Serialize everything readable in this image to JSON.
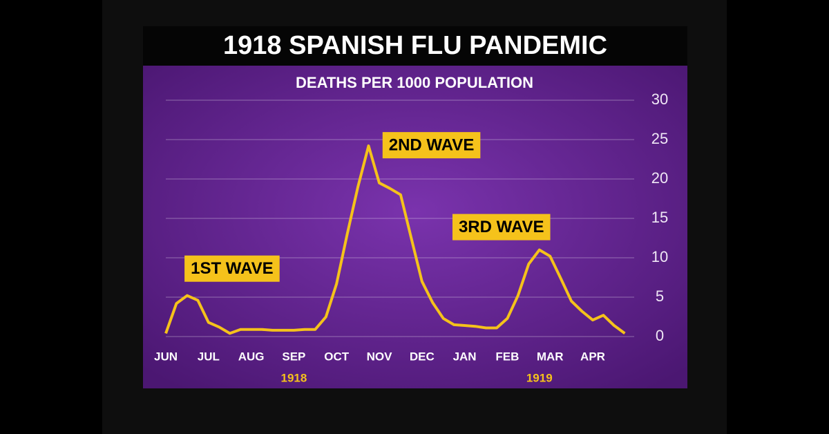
{
  "chart_data": {
    "type": "line",
    "title": "1918 SPANISH FLU PANDEMIC",
    "subtitle": "DEATHS PER 1000 POPULATION",
    "categories": [
      "JUN",
      null,
      null,
      null,
      "JUL",
      null,
      null,
      null,
      "AUG",
      null,
      null,
      null,
      "SEP",
      null,
      null,
      null,
      "OCT",
      null,
      null,
      null,
      "NOV",
      null,
      null,
      null,
      "DEC",
      null,
      null,
      null,
      "JAN",
      null,
      null,
      null,
      "FEB",
      null,
      null,
      null,
      "MAR",
      null,
      null,
      null,
      "APR",
      null,
      null,
      null
    ],
    "years": [
      null,
      null,
      null,
      null,
      null,
      null,
      null,
      null,
      null,
      null,
      null,
      null,
      "1918",
      null,
      null,
      null,
      null,
      null,
      null,
      null,
      null,
      null,
      null,
      null,
      null,
      null,
      null,
      null,
      null,
      null,
      null,
      null,
      null,
      null,
      null,
      "1919",
      null,
      null,
      null,
      null,
      null,
      null,
      null,
      null
    ],
    "series": [
      {
        "name": "Deaths per 1000",
        "color": "#f5c21b",
        "values": [
          0.4,
          4.2,
          5.2,
          4.6,
          1.8,
          1.2,
          0.4,
          0.9,
          0.9,
          0.9,
          0.8,
          0.8,
          0.8,
          0.9,
          0.9,
          2.5,
          6.7,
          13,
          19,
          24.2,
          19.5,
          18.8,
          18,
          12.5,
          7,
          4.3,
          2.3,
          1.5,
          1.4,
          1.3,
          1.1,
          1.1,
          2.3,
          5.2,
          9.2,
          11,
          10.2,
          7.4,
          4.5,
          3.2,
          2.1,
          2.7,
          1.4,
          0.4
        ]
      }
    ],
    "annotations": [
      {
        "text": "1ST WAVE",
        "at": 2
      },
      {
        "text": "2ND WAVE",
        "at": 19
      },
      {
        "text": "3RD WAVE",
        "at": 35
      }
    ],
    "ylim": [
      0,
      30
    ],
    "yticks": [
      0,
      5,
      10,
      15,
      20,
      25,
      30
    ],
    "grid": true
  }
}
